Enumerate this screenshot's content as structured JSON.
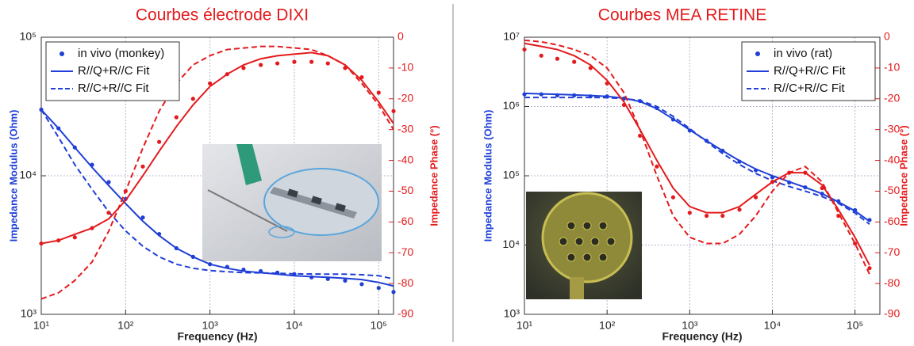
{
  "chart_data": [
    {
      "type": "bode",
      "title": "Courbes électrode DIXI",
      "xlabel": "Frequency (Hz)",
      "ylabel": "Impedance Modulus (Ohm)",
      "y2label": "Impedance Phase (°)",
      "xlog": true,
      "ylog": true,
      "grid": true,
      "legend": "upper left",
      "xlim": [
        10,
        150000
      ],
      "ylim": [
        1000,
        100000
      ],
      "y2lim": [
        -90,
        0
      ],
      "xticks": [
        {
          "value": 10,
          "label": "10¹"
        },
        {
          "value": 100,
          "label": "10²"
        },
        {
          "value": 1000,
          "label": "10³"
        },
        {
          "value": 10000,
          "label": "10⁴"
        },
        {
          "value": 100000,
          "label": "10⁵"
        }
      ],
      "yticks": [
        {
          "value": 1000,
          "label": "10³"
        },
        {
          "value": 10000,
          "label": "10⁴"
        },
        {
          "value": 100000,
          "label": "10⁵"
        }
      ],
      "y2ticks": [
        0,
        -10,
        -20,
        -30,
        -40,
        -50,
        -60,
        -70,
        -80,
        -90
      ],
      "x": [
        10,
        16,
        25,
        40,
        63,
        100,
        160,
        250,
        400,
        630,
        1000,
        1600,
        2500,
        4000,
        6300,
        10000,
        16000,
        25000,
        40000,
        63000,
        100000,
        150000
      ],
      "series": [
        {
          "name": "in vivo (monkey)",
          "color": "#1f3fd6",
          "style": "markers",
          "values": [
            30000,
            22000,
            16000,
            12000,
            9000,
            6800,
            5000,
            3800,
            3000,
            2600,
            2300,
            2200,
            2100,
            2050,
            2000,
            1950,
            1850,
            1800,
            1750,
            1650,
            1550,
            1450
          ]
        },
        {
          "name": "R//Q+R//C Fit",
          "color": "#1f3fd6",
          "style": "solid",
          "values": [
            30000,
            22000,
            16000,
            11500,
            8500,
            6300,
            4700,
            3700,
            3000,
            2600,
            2300,
            2150,
            2050,
            2000,
            1950,
            1900,
            1870,
            1850,
            1820,
            1780,
            1700,
            1600
          ]
        },
        {
          "name": "R//C+R//C Fit",
          "color": "#1f3fd6",
          "style": "dashed",
          "values": [
            30000,
            19000,
            12000,
            8000,
            5500,
            4000,
            3100,
            2600,
            2300,
            2150,
            2070,
            2030,
            2000,
            1990,
            1980,
            1960,
            1955,
            1950,
            1950,
            1930,
            1900,
            1800
          ]
        },
        {
          "color": "#e41a1c",
          "style": "markers",
          "axis": "y2",
          "values": [
            -67,
            -66,
            -65,
            -62,
            -57,
            -50,
            -42,
            -34,
            -26,
            -20,
            -15,
            -12,
            -10,
            -9,
            -8.5,
            -8,
            -8,
            -8.5,
            -10,
            -13,
            -18,
            -24
          ]
        },
        {
          "color": "#e41a1c",
          "style": "solid",
          "axis": "y2",
          "values": [
            -67,
            -66,
            -64,
            -62,
            -59,
            -53,
            -45,
            -37,
            -29,
            -22,
            -16,
            -12,
            -9,
            -7,
            -6,
            -5.5,
            -5,
            -6,
            -9,
            -14,
            -21,
            -28
          ]
        },
        {
          "color": "#e41a1c",
          "style": "dashed",
          "axis": "y2",
          "values": [
            -85,
            -83,
            -79,
            -73,
            -63,
            -50,
            -36,
            -24,
            -15,
            -9,
            -6,
            -4,
            -3.5,
            -3,
            -3,
            -3.5,
            -4,
            -6,
            -9,
            -15,
            -22,
            -30
          ]
        }
      ]
    },
    {
      "type": "bode",
      "title": "Courbes MEA RETINE",
      "xlabel": "Frequency (Hz)",
      "ylabel": "Impedance Modulus (Ohm)",
      "y2label": "Impedance Phase (°)",
      "xlog": true,
      "ylog": true,
      "grid": true,
      "legend": "upper right",
      "xlim": [
        10,
        200000
      ],
      "ylim": [
        1000,
        10000000
      ],
      "y2lim": [
        -90,
        0
      ],
      "xticks": [
        {
          "value": 10,
          "label": "10¹"
        },
        {
          "value": 100,
          "label": "10²"
        },
        {
          "value": 1000,
          "label": "10³"
        },
        {
          "value": 10000,
          "label": "10⁴"
        },
        {
          "value": 100000,
          "label": "10⁵"
        }
      ],
      "yticks": [
        {
          "value": 1000,
          "label": "10³"
        },
        {
          "value": 10000,
          "label": "10⁴"
        },
        {
          "value": 100000,
          "label": "10⁵"
        },
        {
          "value": 1000000,
          "label": "10⁶"
        },
        {
          "value": 10000000,
          "label": "10⁷"
        }
      ],
      "y2ticks": [
        0,
        -10,
        -20,
        -30,
        -40,
        -50,
        -60,
        -70,
        -80,
        -90
      ],
      "x": [
        10,
        16,
        25,
        40,
        63,
        100,
        160,
        250,
        400,
        630,
        1000,
        1600,
        2500,
        4000,
        6300,
        10000,
        16000,
        25000,
        40000,
        63000,
        100000,
        150000
      ],
      "series": [
        {
          "name": "in vivo (rat)",
          "color": "#1f3fd6",
          "style": "markers",
          "values": [
            1500000,
            1500000,
            1450000,
            1450000,
            1400000,
            1400000,
            1300000,
            1200000,
            950000,
            650000,
            450000,
            320000,
            230000,
            160000,
            120000,
            95000,
            80000,
            68000,
            55000,
            43000,
            32000,
            23000
          ]
        },
        {
          "name": "R//Q+R//C Fit",
          "color": "#1f3fd6",
          "style": "solid",
          "values": [
            1550000,
            1520000,
            1500000,
            1470000,
            1440000,
            1400000,
            1320000,
            1180000,
            930000,
            660000,
            460000,
            320000,
            230000,
            165000,
            125000,
            100000,
            82000,
            68000,
            55000,
            42000,
            31000,
            22000
          ]
        },
        {
          "name": "R//C+R//C Fit",
          "color": "#1f3fd6",
          "style": "dashed",
          "values": [
            1350000,
            1350000,
            1350000,
            1350000,
            1350000,
            1340000,
            1300000,
            1220000,
            1000000,
            720000,
            480000,
            310000,
            210000,
            145000,
            108000,
            85000,
            70000,
            60000,
            50000,
            40000,
            29000,
            20000
          ]
        },
        {
          "color": "#e41a1c",
          "style": "markers",
          "axis": "y2",
          "values": [
            -4,
            -6,
            -7,
            -8,
            -10,
            -15,
            -22,
            -32,
            -42,
            -52,
            -57,
            -58,
            -58,
            -56,
            -52,
            -47,
            -44,
            -44,
            -49,
            -58,
            -67,
            -75
          ]
        },
        {
          "color": "#e41a1c",
          "style": "solid",
          "axis": "y2",
          "values": [
            -2,
            -3,
            -4,
            -6,
            -9,
            -14,
            -21,
            -30,
            -40,
            -49,
            -55,
            -57,
            -57,
            -55,
            -51,
            -47,
            -44,
            -44,
            -48,
            -56,
            -65,
            -74
          ]
        },
        {
          "color": "#e41a1c",
          "style": "dashed",
          "axis": "y2",
          "values": [
            -1,
            -1.5,
            -2.5,
            -4,
            -6,
            -10,
            -18,
            -30,
            -45,
            -58,
            -65,
            -67,
            -67,
            -64,
            -58,
            -50,
            -44,
            -42,
            -47,
            -57,
            -67,
            -77
          ]
        }
      ]
    }
  ]
}
